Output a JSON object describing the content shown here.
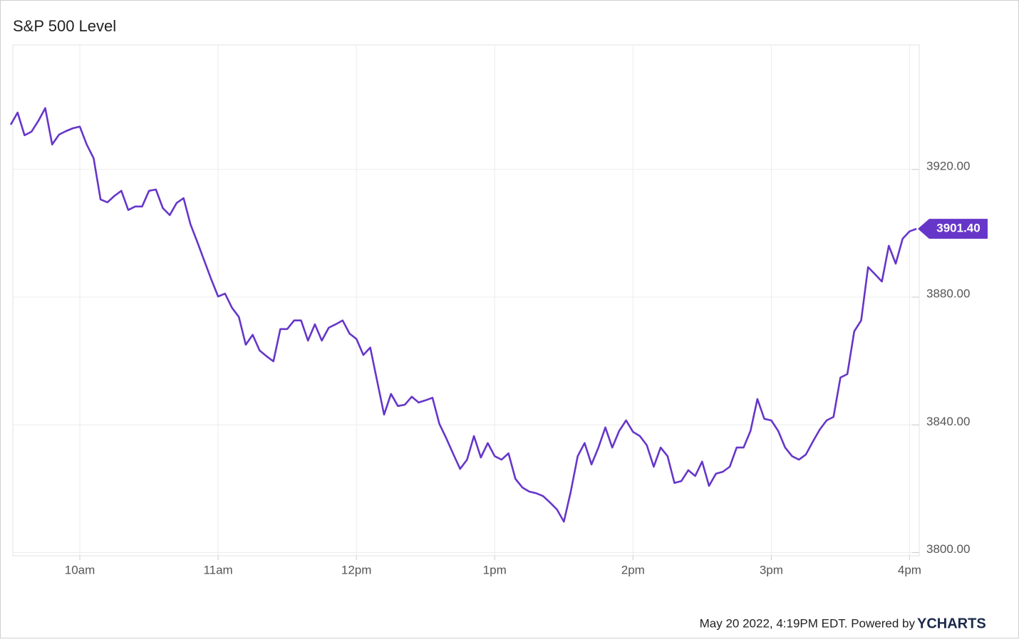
{
  "chart_data": {
    "type": "line",
    "title": "S&P 500 Level",
    "x": [
      9.5,
      9.55,
      9.6,
      9.65,
      9.7,
      9.75,
      9.8,
      9.85,
      9.9,
      9.95,
      10,
      10.05,
      10.1,
      10.15,
      10.2,
      10.25,
      10.3,
      10.35,
      10.4,
      10.45,
      10.5,
      10.55,
      10.6,
      10.65,
      10.7,
      10.75,
      10.8,
      10.85,
      10.9,
      10.95,
      11,
      11.05,
      11.1,
      11.15,
      11.2,
      11.25,
      11.3,
      11.35,
      11.4,
      11.45,
      11.5,
      11.55,
      11.6,
      11.65,
      11.7,
      11.75,
      11.8,
      11.85,
      11.9,
      11.95,
      12,
      12.05,
      12.1,
      12.15,
      12.2,
      12.25,
      12.3,
      12.35,
      12.4,
      12.45,
      12.5,
      12.55,
      12.6,
      12.65,
      12.7,
      12.75,
      12.8,
      12.85,
      12.9,
      12.95,
      13,
      13.05,
      13.1,
      13.15,
      13.2,
      13.25,
      13.3,
      13.35,
      13.4,
      13.45,
      13.5,
      13.55,
      13.6,
      13.65,
      13.7,
      13.75,
      13.8,
      13.85,
      13.9,
      13.95,
      14,
      14.05,
      14.1,
      14.15,
      14.2,
      14.25,
      14.3,
      14.35,
      14.4,
      14.45,
      14.5,
      14.55,
      14.6,
      14.65,
      14.7,
      14.75,
      14.8,
      14.85,
      14.9,
      14.95,
      15,
      15.05,
      15.1,
      15.15,
      15.2,
      15.25,
      15.3,
      15.35,
      15.4,
      15.45,
      15.5,
      15.55,
      15.6,
      15.65,
      15.7,
      15.75,
      15.8,
      15.85,
      15.9,
      15.95,
      16,
      16.05
    ],
    "values": [
      3934.0,
      3937.8,
      3930.7,
      3931.8,
      3935.2,
      3939.2,
      3927.8,
      3930.9,
      3932.0,
      3932.9,
      3933.4,
      3927.8,
      3923.5,
      3910.6,
      3909.7,
      3911.7,
      3913.3,
      3907.3,
      3908.4,
      3908.4,
      3913.3,
      3913.7,
      3907.9,
      3905.7,
      3909.5,
      3911.0,
      3902.8,
      3897.2,
      3891.4,
      3885.6,
      3880.2,
      3881.1,
      3876.7,
      3873.8,
      3865.1,
      3868.2,
      3863.3,
      3861.5,
      3859.9,
      3870.0,
      3870.0,
      3872.7,
      3872.7,
      3866.4,
      3871.5,
      3866.4,
      3870.4,
      3871.5,
      3872.7,
      3868.6,
      3866.9,
      3861.9,
      3864.2,
      3853.7,
      3843.2,
      3849.7,
      3845.9,
      3846.3,
      3848.8,
      3847.0,
      3847.7,
      3848.5,
      3840.3,
      3835.8,
      3830.9,
      3826.2,
      3829.1,
      3836.5,
      3829.8,
      3834.3,
      3830.2,
      3829.1,
      3831.1,
      3823.1,
      3820.4,
      3819.1,
      3818.6,
      3817.7,
      3815.7,
      3813.5,
      3809.7,
      3819.1,
      3830.2,
      3834.3,
      3827.6,
      3832.9,
      3839.2,
      3832.9,
      3838.1,
      3841.4,
      3837.8,
      3836.5,
      3833.6,
      3826.9,
      3832.9,
      3830.2,
      3821.8,
      3822.4,
      3825.8,
      3824.0,
      3828.5,
      3820.9,
      3824.7,
      3825.3,
      3826.9,
      3832.9,
      3832.9,
      3838.1,
      3848.1,
      3841.9,
      3841.4,
      3838.1,
      3832.9,
      3830.2,
      3829.1,
      3830.7,
      3834.7,
      3838.5,
      3841.4,
      3842.5,
      3854.8,
      3855.9,
      3869.3,
      3872.7,
      3889.4,
      3887.2,
      3884.9,
      3896.1,
      3890.5,
      3898.3,
      3900.6,
      3901.4
    ],
    "color": "#6636c9",
    "last": {
      "value": 3901.4,
      "label": "3901.40"
    },
    "xlim": [
      9.5,
      16.07
    ],
    "xticks": [
      {
        "value": 10,
        "label": "10am"
      },
      {
        "value": 11,
        "label": "11am"
      },
      {
        "value": 12,
        "label": "12pm"
      },
      {
        "value": 13,
        "label": "1pm"
      },
      {
        "value": 14,
        "label": "2pm"
      },
      {
        "value": 15,
        "label": "3pm"
      },
      {
        "value": 16,
        "label": "4pm"
      }
    ],
    "ylim": [
      3799,
      3959
    ],
    "yticks": [
      {
        "value": 3800,
        "label": "3800.00"
      },
      {
        "value": 3840,
        "label": "3840.00"
      },
      {
        "value": 3880,
        "label": "3880.00"
      },
      {
        "value": 3920,
        "label": "3920.00"
      }
    ],
    "grid": true
  },
  "footer": {
    "text": "May 20 2022, 4:19PM EDT. Powered by",
    "brand": "YCHARTS"
  }
}
